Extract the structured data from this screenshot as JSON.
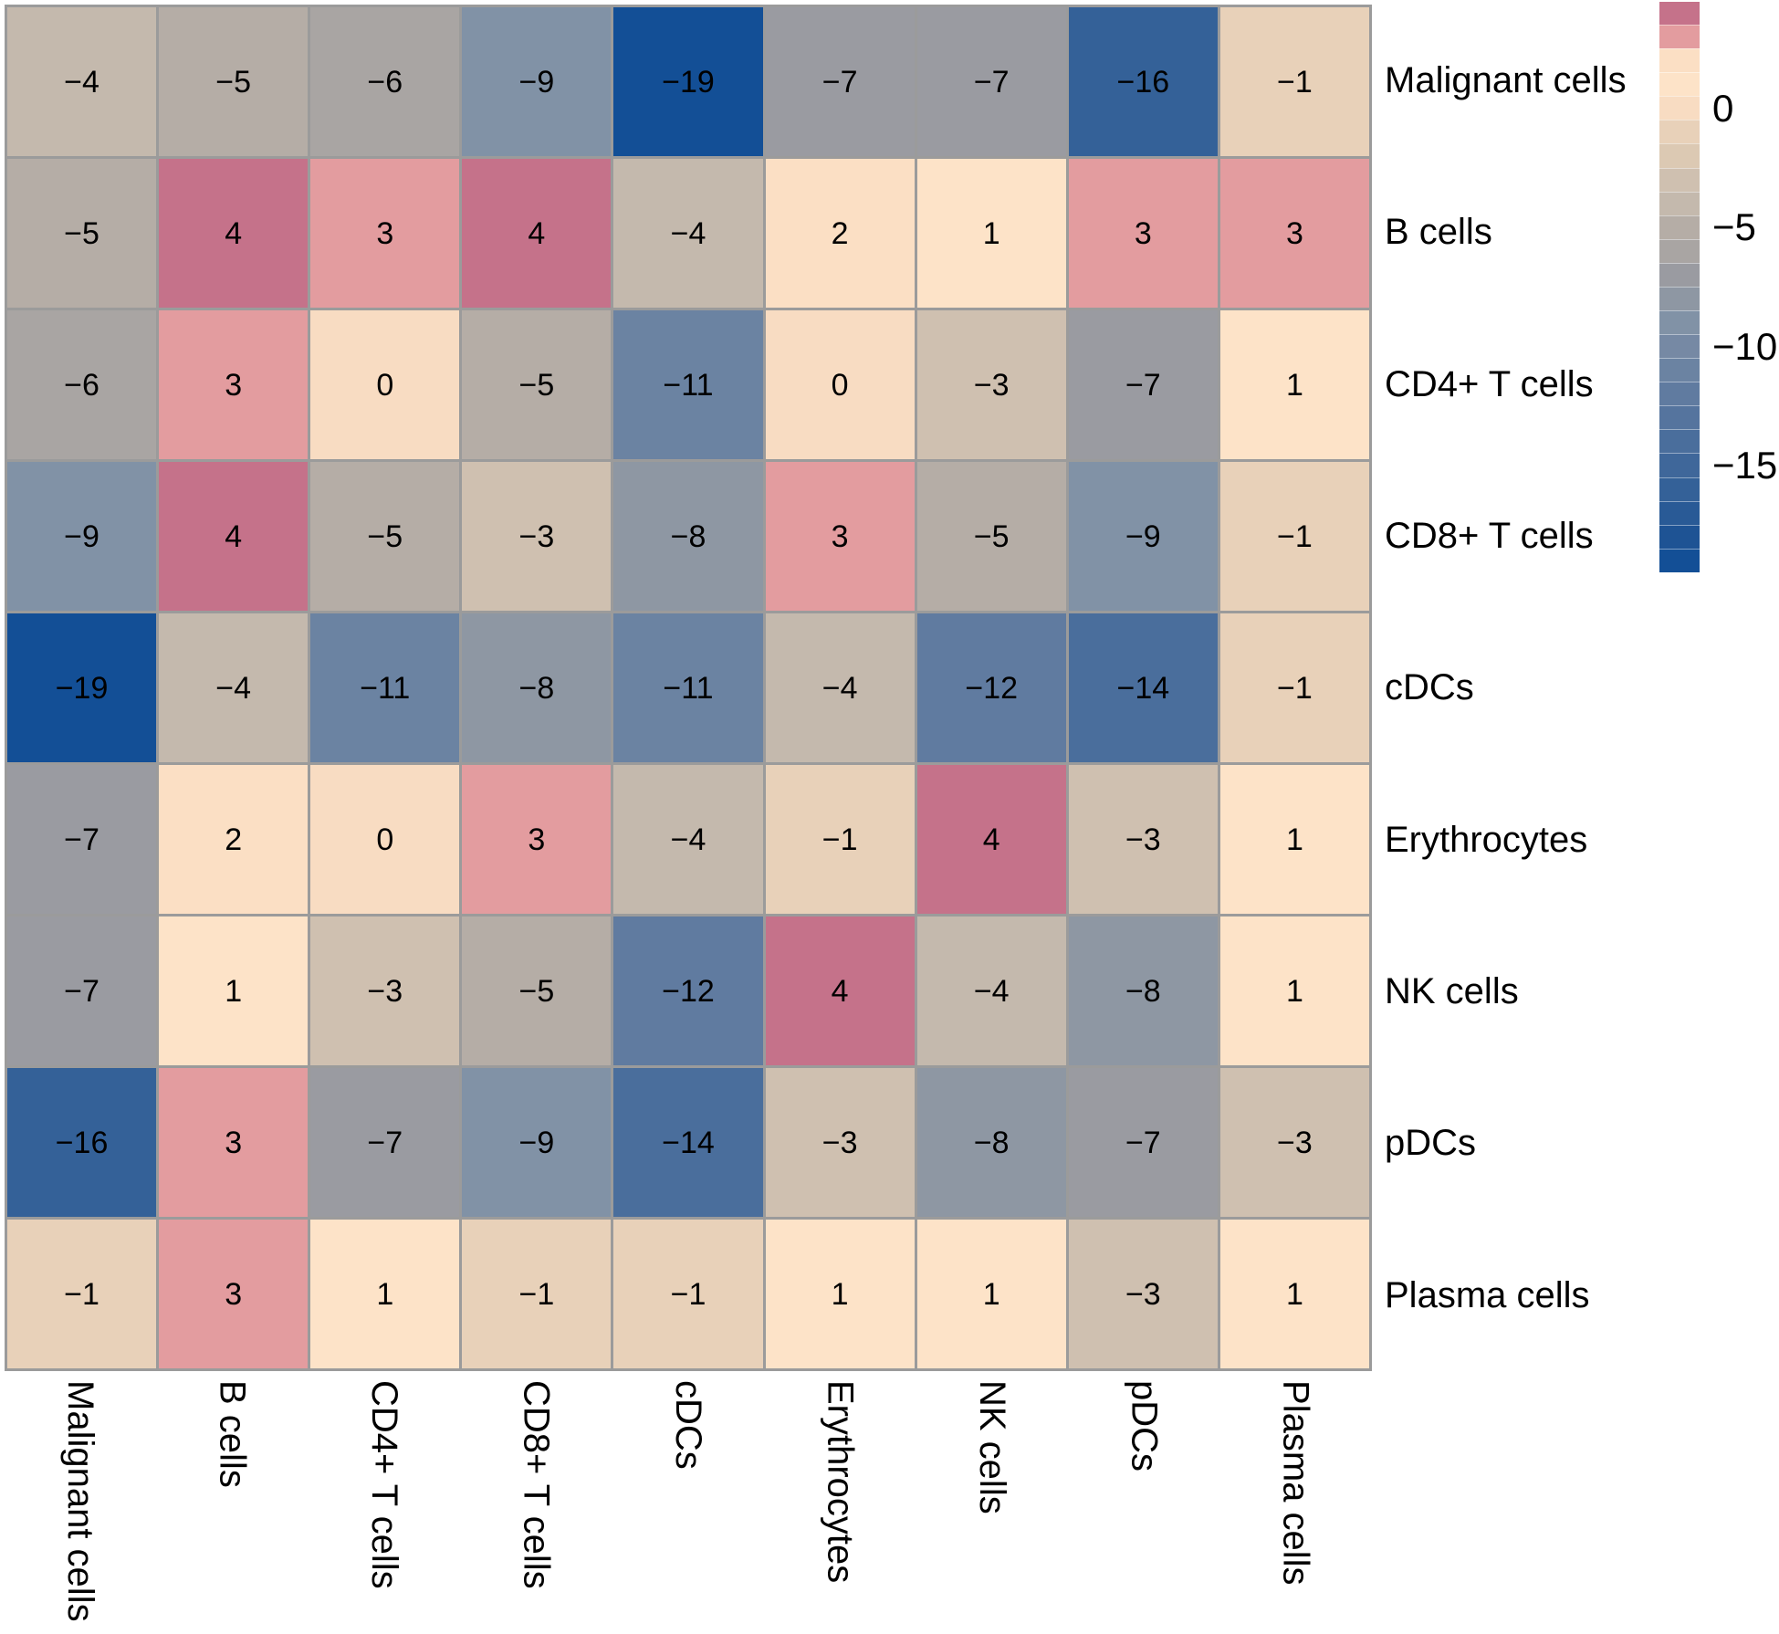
{
  "chart_data": {
    "type": "heatmap",
    "title": "",
    "row_labels": [
      "Malignant cells",
      "B cells",
      "CD4+ T cells",
      "CD8+ T cells",
      "cDCs",
      "Erythrocytes",
      "NK cells",
      "pDCs",
      "Plasma cells"
    ],
    "col_labels": [
      "Malignant cells",
      "B cells",
      "CD4+ T cells",
      "CD8+ T cells",
      "cDCs",
      "Erythrocytes",
      "NK cells",
      "pDCs",
      "Plasma cells"
    ],
    "matrix": [
      [
        -4,
        -5,
        -6,
        -9,
        -19,
        -7,
        -7,
        -16,
        -1
      ],
      [
        -5,
        4,
        3,
        4,
        -4,
        2,
        1,
        3,
        3
      ],
      [
        -6,
        3,
        0,
        -5,
        -11,
        0,
        -3,
        -7,
        1
      ],
      [
        -9,
        4,
        -5,
        -3,
        -8,
        3,
        -5,
        -9,
        -1
      ],
      [
        -19,
        -4,
        -11,
        -8,
        -11,
        -4,
        -12,
        -14,
        -1
      ],
      [
        -7,
        2,
        0,
        3,
        -4,
        -1,
        4,
        -3,
        1
      ],
      [
        -7,
        1,
        -3,
        -5,
        -12,
        4,
        -4,
        -8,
        1
      ],
      [
        -16,
        3,
        -7,
        -9,
        -14,
        -3,
        -8,
        -7,
        -3
      ],
      [
        -1,
        3,
        1,
        -1,
        -1,
        1,
        1,
        -3,
        1
      ]
    ],
    "value_color_bins": [
      {
        "value": 4,
        "color": "#c5728a"
      },
      {
        "value": 3,
        "color": "#e39c9f"
      },
      {
        "value": 2,
        "color": "#fbdfc4"
      },
      {
        "value": 1,
        "color": "#fde3c8"
      },
      {
        "value": 0,
        "color": "#f8dcc2"
      },
      {
        "value": -1,
        "color": "#e8d1b9"
      },
      {
        "value": -2,
        "color": "#dcc9b3"
      },
      {
        "value": -3,
        "color": "#cfc0b0"
      },
      {
        "value": -4,
        "color": "#c4b9ad"
      },
      {
        "value": -5,
        "color": "#b5ada6"
      },
      {
        "value": -6,
        "color": "#a9a5a3"
      },
      {
        "value": -7,
        "color": "#9a9ba1"
      },
      {
        "value": -8,
        "color": "#8e97a3"
      },
      {
        "value": -9,
        "color": "#8192a6"
      },
      {
        "value": -10,
        "color": "#7689a4"
      },
      {
        "value": -11,
        "color": "#6b83a2"
      },
      {
        "value": -12,
        "color": "#607ba0"
      },
      {
        "value": -13,
        "color": "#55749e"
      },
      {
        "value": -14,
        "color": "#4a6e9c"
      },
      {
        "value": -15,
        "color": "#3f679a"
      },
      {
        "value": -16,
        "color": "#346198"
      },
      {
        "value": -17,
        "color": "#295a96"
      },
      {
        "value": -18,
        "color": "#1e5394"
      },
      {
        "value": -19,
        "color": "#134f96"
      }
    ],
    "legend": {
      "top_value": 4.5,
      "bottom_value": -19.5,
      "ticks": [
        {
          "label": "0",
          "value": 0
        },
        {
          "label": "−5",
          "value": -5
        },
        {
          "label": "−10",
          "value": -10
        },
        {
          "label": "−15",
          "value": -15
        }
      ]
    },
    "grid_line_color": "#9b9b9b",
    "background": "#ffffff",
    "layout": {
      "legend_position": "right",
      "row_labels_position": "right",
      "col_labels_position": "bottom",
      "col_label_rotation_deg": 90
    }
  }
}
